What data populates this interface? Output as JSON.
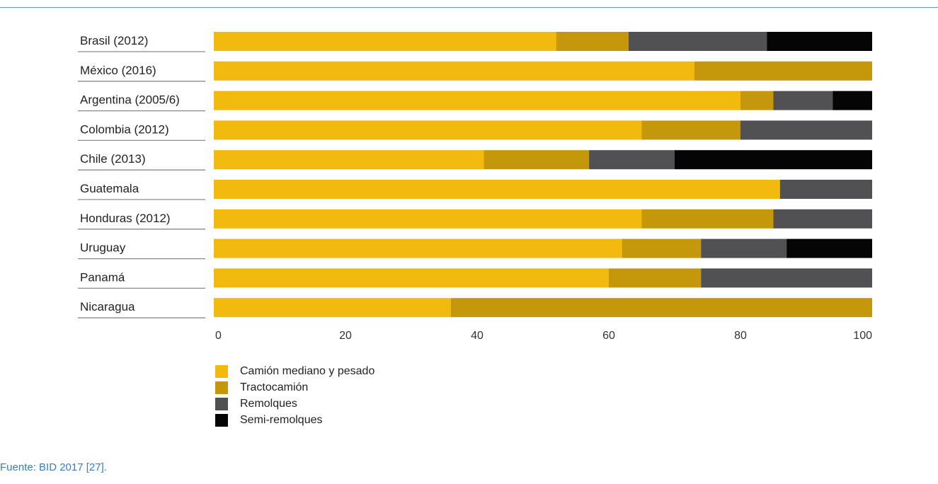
{
  "chart_data": {
    "type": "bar",
    "orientation": "horizontal",
    "stacked": true,
    "categories": [
      "Brasil (2012)",
      "México (2016)",
      "Argentina (2005/6)",
      "Colombia (2012)",
      "Chile (2013)",
      "Guatemala",
      "Honduras (2012)",
      "Uruguay",
      "Panamá",
      "Nicaragua"
    ],
    "series": [
      {
        "name": "Camión mediano y pesado",
        "color": "#f2b90f",
        "values": [
          52,
          73,
          80,
          65,
          41,
          86,
          65,
          62,
          60,
          36
        ]
      },
      {
        "name": "Tractocamión",
        "color": "#c4980a",
        "values": [
          11,
          27,
          5,
          15,
          16,
          0,
          20,
          12,
          14,
          64
        ]
      },
      {
        "name": "Remolques",
        "color": "#515154",
        "values": [
          21,
          0,
          9,
          20,
          13,
          14,
          15,
          13,
          26,
          0
        ]
      },
      {
        "name": "Semi-remolques",
        "color": "#050505",
        "values": [
          16,
          0,
          6,
          0,
          30,
          0,
          0,
          13,
          0,
          0
        ]
      }
    ],
    "xticks": [
      "0",
      "20",
      "40",
      "60",
      "80",
      "100"
    ],
    "xlim": [
      0,
      100
    ],
    "legend_position": "bottom-left",
    "grid": false
  },
  "source": "Fuente: BID 2017 [27]."
}
